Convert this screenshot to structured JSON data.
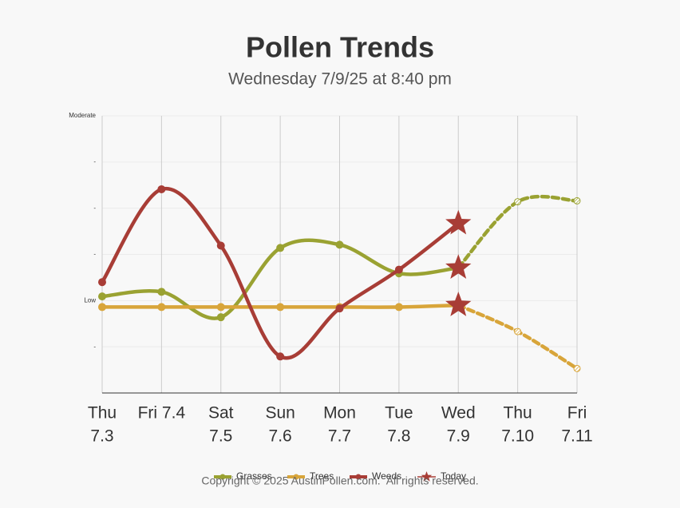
{
  "chart_data": {
    "type": "line",
    "title": "Pollen Trends",
    "subtitle": "Wednesday 7/9/25 at 8:40 pm",
    "categories": [
      [
        "Thu",
        "7.3"
      ],
      [
        "Fri 7.4"
      ],
      [
        "Sat",
        "7.5"
      ],
      [
        "Sun",
        "7.6"
      ],
      [
        "Mon",
        "7.7"
      ],
      [
        "Tue",
        "7.8"
      ],
      [
        "Wed",
        "7.9"
      ],
      [
        "Thu",
        "7.10"
      ],
      [
        "Fri",
        "7.11"
      ]
    ],
    "series": [
      {
        "name": "Grasses",
        "color": "#9aa232",
        "values": [
          2.09,
          2.19,
          1.64,
          3.14,
          3.21,
          2.59,
          2.71,
          4.14,
          4.16
        ]
      },
      {
        "name": "Trees",
        "color": "#d8a53a",
        "values": [
          1.86,
          1.86,
          1.86,
          1.86,
          1.86,
          1.86,
          1.9,
          1.33,
          0.53
        ]
      },
      {
        "name": "Weeds",
        "color": "#a83d36",
        "values": [
          2.4,
          4.41,
          3.19,
          0.79,
          1.83,
          2.67,
          3.67,
          null,
          null
        ]
      }
    ],
    "today": {
      "name": "Today",
      "color": "#a83d36"
    },
    "forecast_start": 6,
    "ylim": [
      0,
      6
    ],
    "yticks": [
      {
        "value": 1,
        "label": "-"
      },
      {
        "value": 2,
        "label": "Low"
      },
      {
        "value": 3,
        "label": "-"
      },
      {
        "value": 4,
        "label": "-"
      },
      {
        "value": 5,
        "label": "-"
      },
      {
        "value": 6,
        "label": "Moderate"
      }
    ],
    "grid": true,
    "footer": "Copyright © 2025 AustinPollen.com.  All rights reserved."
  }
}
